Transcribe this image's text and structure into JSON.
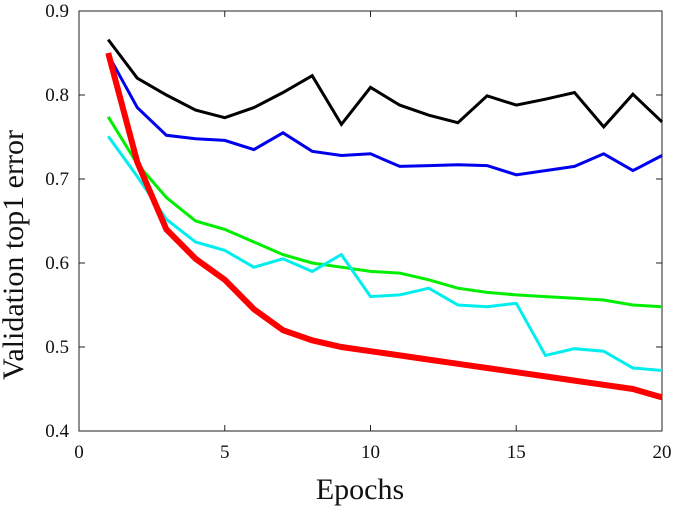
{
  "chart_data": {
    "type": "line",
    "xlabel": "Epochs",
    "ylabel": "Validation top1 error",
    "xlim": [
      0,
      20
    ],
    "ylim": [
      0.4,
      0.9
    ],
    "xticks": [
      0,
      5,
      10,
      15,
      20
    ],
    "yticks": [
      0.4,
      0.5,
      0.6,
      0.7,
      0.8,
      0.9
    ],
    "xtick_labels": [
      "0",
      "5",
      "10",
      "15",
      "20"
    ],
    "ytick_labels": [
      "0.4",
      "0.5",
      "0.6",
      "0.7",
      "0.8",
      "0.9"
    ],
    "grid": false,
    "legend": null,
    "series": [
      {
        "color": "#000000",
        "x": [
          1,
          2,
          3,
          4,
          5,
          6,
          7,
          8,
          9,
          10,
          11,
          12,
          13,
          14,
          15,
          16,
          17,
          18,
          19,
          20
        ],
        "y": [
          0.866,
          0.82,
          0.8,
          0.782,
          0.773,
          0.785,
          0.803,
          0.823,
          0.765,
          0.809,
          0.788,
          0.776,
          0.767,
          0.799,
          0.788,
          0.795,
          0.803,
          0.762,
          0.801,
          0.768
        ]
      },
      {
        "color": "#0000ee",
        "x": [
          1,
          2,
          3,
          4,
          5,
          6,
          7,
          8,
          9,
          10,
          11,
          12,
          13,
          14,
          15,
          16,
          17,
          18,
          19,
          20
        ],
        "y": [
          0.848,
          0.785,
          0.752,
          0.748,
          0.746,
          0.735,
          0.755,
          0.733,
          0.728,
          0.73,
          0.715,
          0.716,
          0.717,
          0.716,
          0.705,
          0.71,
          0.715,
          0.73,
          0.71,
          0.728
        ]
      },
      {
        "color": "#00ee00",
        "x": [
          1,
          2,
          3,
          4,
          5,
          6,
          7,
          8,
          9,
          10,
          11,
          12,
          13,
          14,
          15,
          16,
          17,
          18,
          19,
          20
        ],
        "y": [
          0.774,
          0.718,
          0.678,
          0.65,
          0.64,
          0.625,
          0.61,
          0.6,
          0.595,
          0.59,
          0.588,
          0.58,
          0.57,
          0.565,
          0.562,
          0.56,
          0.558,
          0.556,
          0.55,
          0.548
        ]
      },
      {
        "color": "#00eeee",
        "x": [
          1,
          2,
          3,
          4,
          5,
          6,
          7,
          8,
          9,
          10,
          11,
          12,
          13,
          14,
          15,
          16,
          17,
          18,
          19,
          20
        ],
        "y": [
          0.751,
          0.703,
          0.652,
          0.625,
          0.615,
          0.595,
          0.605,
          0.59,
          0.61,
          0.56,
          0.562,
          0.57,
          0.55,
          0.548,
          0.552,
          0.49,
          0.498,
          0.495,
          0.475,
          0.472
        ]
      },
      {
        "color": "#ff0000",
        "x": [
          1,
          2,
          3,
          4,
          5,
          6,
          7,
          8,
          9,
          10,
          11,
          12,
          13,
          14,
          15,
          16,
          17,
          18,
          19,
          20
        ],
        "y": [
          0.85,
          0.72,
          0.64,
          0.605,
          0.58,
          0.545,
          0.52,
          0.508,
          0.5,
          0.495,
          0.49,
          0.485,
          0.48,
          0.475,
          0.47,
          0.465,
          0.46,
          0.455,
          0.45,
          0.44
        ]
      }
    ]
  }
}
